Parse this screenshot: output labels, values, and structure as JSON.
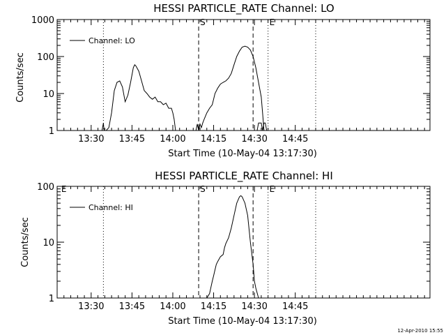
{
  "footer": {
    "timestamp": "12-Apr-2010 15:55"
  },
  "chart_data": [
    {
      "type": "line",
      "title": "HESSI PARTICLE_RATE Channel: LO",
      "xlabel": "Start Time (10-May-04 13:17:30)",
      "ylabel": "Counts/sec",
      "yscale": "log",
      "ylim": [
        1,
        1000
      ],
      "xlim": [
        0,
        137
      ],
      "x_units": "minutes after 13:17:30",
      "xticks": [
        12.5,
        27.5,
        42.5,
        57.5,
        72.5,
        87.5
      ],
      "xtick_labels": [
        "13:30",
        "13:45",
        "14:00",
        "14:15",
        "14:30",
        "14:45"
      ],
      "yticks": [
        1,
        10,
        100,
        1000
      ],
      "ytick_labels": [
        "1",
        "10",
        "100",
        "1000"
      ],
      "legend": {
        "label": "Channel: LO",
        "position": "top-left"
      },
      "vlines": [
        {
          "x": 17,
          "style": "dotted"
        },
        {
          "x": 52,
          "style": "dashed"
        },
        {
          "x": 72,
          "style": "dashed"
        },
        {
          "x": 77.5,
          "style": "dotted"
        },
        {
          "x": 95,
          "style": "dotted"
        }
      ],
      "markers": [
        {
          "label": "S",
          "x": 52
        },
        {
          "label": "E",
          "x": 77.5
        }
      ],
      "series": [
        {
          "name": "Channel: LO",
          "segments": [
            [
              [
                16.5,
                1
              ],
              [
                17,
                1.6
              ],
              [
                17.2,
                1
              ]
            ],
            [
              [
                18,
                1
              ],
              [
                19,
                1.2
              ],
              [
                20,
                3
              ],
              [
                21,
                12
              ],
              [
                22,
                20
              ],
              [
                23,
                22
              ],
              [
                24,
                15
              ],
              [
                25,
                6
              ],
              [
                26,
                9
              ],
              [
                27,
                20
              ],
              [
                28,
                50
              ],
              [
                28.5,
                60
              ],
              [
                29,
                55
              ],
              [
                30,
                40
              ],
              [
                31,
                22
              ],
              [
                32,
                12
              ],
              [
                33,
                10
              ],
              [
                34,
                8
              ],
              [
                35,
                7
              ],
              [
                36,
                8
              ],
              [
                37,
                6
              ],
              [
                38,
                6
              ],
              [
                39,
                5
              ],
              [
                40,
                5.5
              ],
              [
                41,
                4
              ],
              [
                42,
                4
              ],
              [
                42.5,
                3
              ],
              [
                43,
                2
              ],
              [
                43.5,
                1
              ]
            ],
            [
              [
                51,
                1
              ],
              [
                51.5,
                1.5
              ],
              [
                52,
                1
              ],
              [
                52.5,
                1.5
              ],
              [
                53,
                1.2
              ],
              [
                53.5,
                1.6
              ],
              [
                54,
                2
              ],
              [
                55,
                3
              ],
              [
                56,
                4
              ],
              [
                57,
                5
              ],
              [
                58,
                10
              ],
              [
                59,
                14
              ],
              [
                60,
                18
              ],
              [
                61,
                20
              ],
              [
                62,
                22
              ],
              [
                63,
                26
              ],
              [
                64,
                35
              ],
              [
                65,
                60
              ],
              [
                66,
                100
              ],
              [
                67,
                140
              ],
              [
                68,
                180
              ],
              [
                69,
                190
              ],
              [
                70,
                180
              ],
              [
                71,
                150
              ],
              [
                72,
                100
              ],
              [
                73,
                50
              ],
              [
                74,
                20
              ],
              [
                75,
                8
              ],
              [
                75.5,
                3
              ],
              [
                76,
                1
              ]
            ],
            [
              [
                73.5,
                1
              ],
              [
                74,
                1.6
              ],
              [
                75,
                1.6
              ],
              [
                75.5,
                1
              ],
              [
                76,
                1.6
              ],
              [
                76.5,
                1.6
              ],
              [
                77,
                1
              ]
            ]
          ]
        }
      ]
    },
    {
      "type": "line",
      "title": "HESSI PARTICLE_RATE Channel: HI",
      "xlabel": "Start Time (10-May-04 13:17:30)",
      "ylabel": "Counts/sec",
      "yscale": "log",
      "ylim": [
        1,
        100
      ],
      "xlim": [
        0,
        137
      ],
      "x_units": "minutes after 13:17:30",
      "xticks": [
        12.5,
        27.5,
        42.5,
        57.5,
        72.5,
        87.5
      ],
      "xtick_labels": [
        "13:30",
        "13:45",
        "14:00",
        "14:15",
        "14:30",
        "14:45"
      ],
      "yticks": [
        1,
        10,
        100
      ],
      "ytick_labels": [
        "1",
        "10",
        "100"
      ],
      "legend": {
        "label": "Channel: HI",
        "position": "top-left"
      },
      "vlines": [
        {
          "x": 17,
          "style": "dotted"
        },
        {
          "x": 52,
          "style": "dashed"
        },
        {
          "x": 72,
          "style": "dashed"
        },
        {
          "x": 77.5,
          "style": "dotted"
        },
        {
          "x": 95,
          "style": "dotted"
        }
      ],
      "markers": [
        {
          "label": "E",
          "x": 1
        },
        {
          "label": "S",
          "x": 52
        },
        {
          "label": "E",
          "x": 77.5
        }
      ],
      "series": [
        {
          "name": "Channel: HI",
          "segments": [
            [
              [
                55,
                1
              ],
              [
                56,
                1.2
              ],
              [
                57,
                2
              ],
              [
                57.5,
                2.5
              ],
              [
                58,
                3.2
              ],
              [
                58.5,
                4
              ],
              [
                59,
                4.5
              ],
              [
                60,
                5.5
              ],
              [
                61,
                6
              ],
              [
                61.5,
                8
              ],
              [
                62,
                9.5
              ],
              [
                63,
                12
              ],
              [
                64,
                18
              ],
              [
                65,
                30
              ],
              [
                66,
                50
              ],
              [
                67,
                65
              ],
              [
                67.5,
                68
              ],
              [
                68,
                65
              ],
              [
                69,
                50
              ],
              [
                70,
                30
              ],
              [
                71,
                10
              ],
              [
                72,
                4
              ],
              [
                72.5,
                2
              ],
              [
                73,
                1.5
              ],
              [
                74,
                1
              ]
            ]
          ]
        }
      ]
    }
  ]
}
